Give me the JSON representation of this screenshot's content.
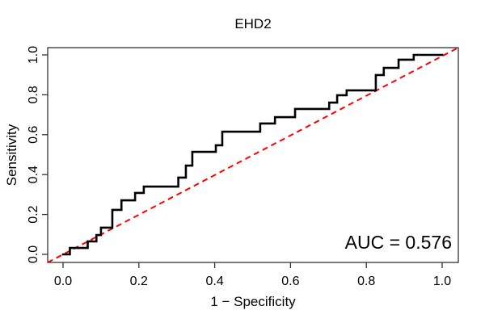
{
  "chart_data": {
    "type": "line",
    "subtype": "roc_step_curve",
    "title": "EHD2",
    "xlabel": "1 − Specificity",
    "ylabel": "Sensitivity",
    "xlim": [
      0,
      1
    ],
    "ylim": [
      0,
      1
    ],
    "grid": false,
    "legend": "none",
    "x_tick_labels": [
      "0.0",
      "0.2",
      "0.4",
      "0.6",
      "0.8",
      "1.0"
    ],
    "y_tick_labels": [
      "0.0",
      "0.2",
      "0.4",
      "0.6",
      "0.8",
      "1.0"
    ],
    "auc": 0.576,
    "annotations": [
      {
        "text": "AUC = 0.576",
        "position": "bottom-right"
      }
    ],
    "series": [
      {
        "name": "ROC curve",
        "type": "step",
        "color": "#000000",
        "line_width": 2.6,
        "start": [
          0.0,
          0.0
        ],
        "end": [
          1.0,
          1.0
        ],
        "steps": [
          [
            0.018,
            0.032
          ],
          [
            0.065,
            0.065
          ],
          [
            0.088,
            0.097
          ],
          [
            0.1,
            0.134
          ],
          [
            0.13,
            0.223
          ],
          [
            0.154,
            0.271
          ],
          [
            0.19,
            0.308
          ],
          [
            0.213,
            0.34
          ],
          [
            0.304,
            0.385
          ],
          [
            0.324,
            0.445
          ],
          [
            0.341,
            0.514
          ],
          [
            0.403,
            0.547
          ],
          [
            0.42,
            0.615
          ],
          [
            0.52,
            0.656
          ],
          [
            0.559,
            0.688
          ],
          [
            0.612,
            0.729
          ],
          [
            0.702,
            0.761
          ],
          [
            0.723,
            0.798
          ],
          [
            0.748,
            0.822
          ],
          [
            0.825,
            0.899
          ],
          [
            0.846,
            0.935
          ],
          [
            0.885,
            0.976
          ],
          [
            0.925,
            1.0
          ]
        ]
      },
      {
        "name": "Chance diagonal",
        "type": "line",
        "style": "dashed",
        "color": "#FF0000",
        "line_width": 2,
        "points": [
          [
            0,
            0
          ],
          [
            1,
            1
          ]
        ]
      }
    ]
  },
  "colors": {
    "frame": "#333333",
    "background": "#FFFFFF",
    "curve": "#000000",
    "reference": "#FF0000"
  }
}
